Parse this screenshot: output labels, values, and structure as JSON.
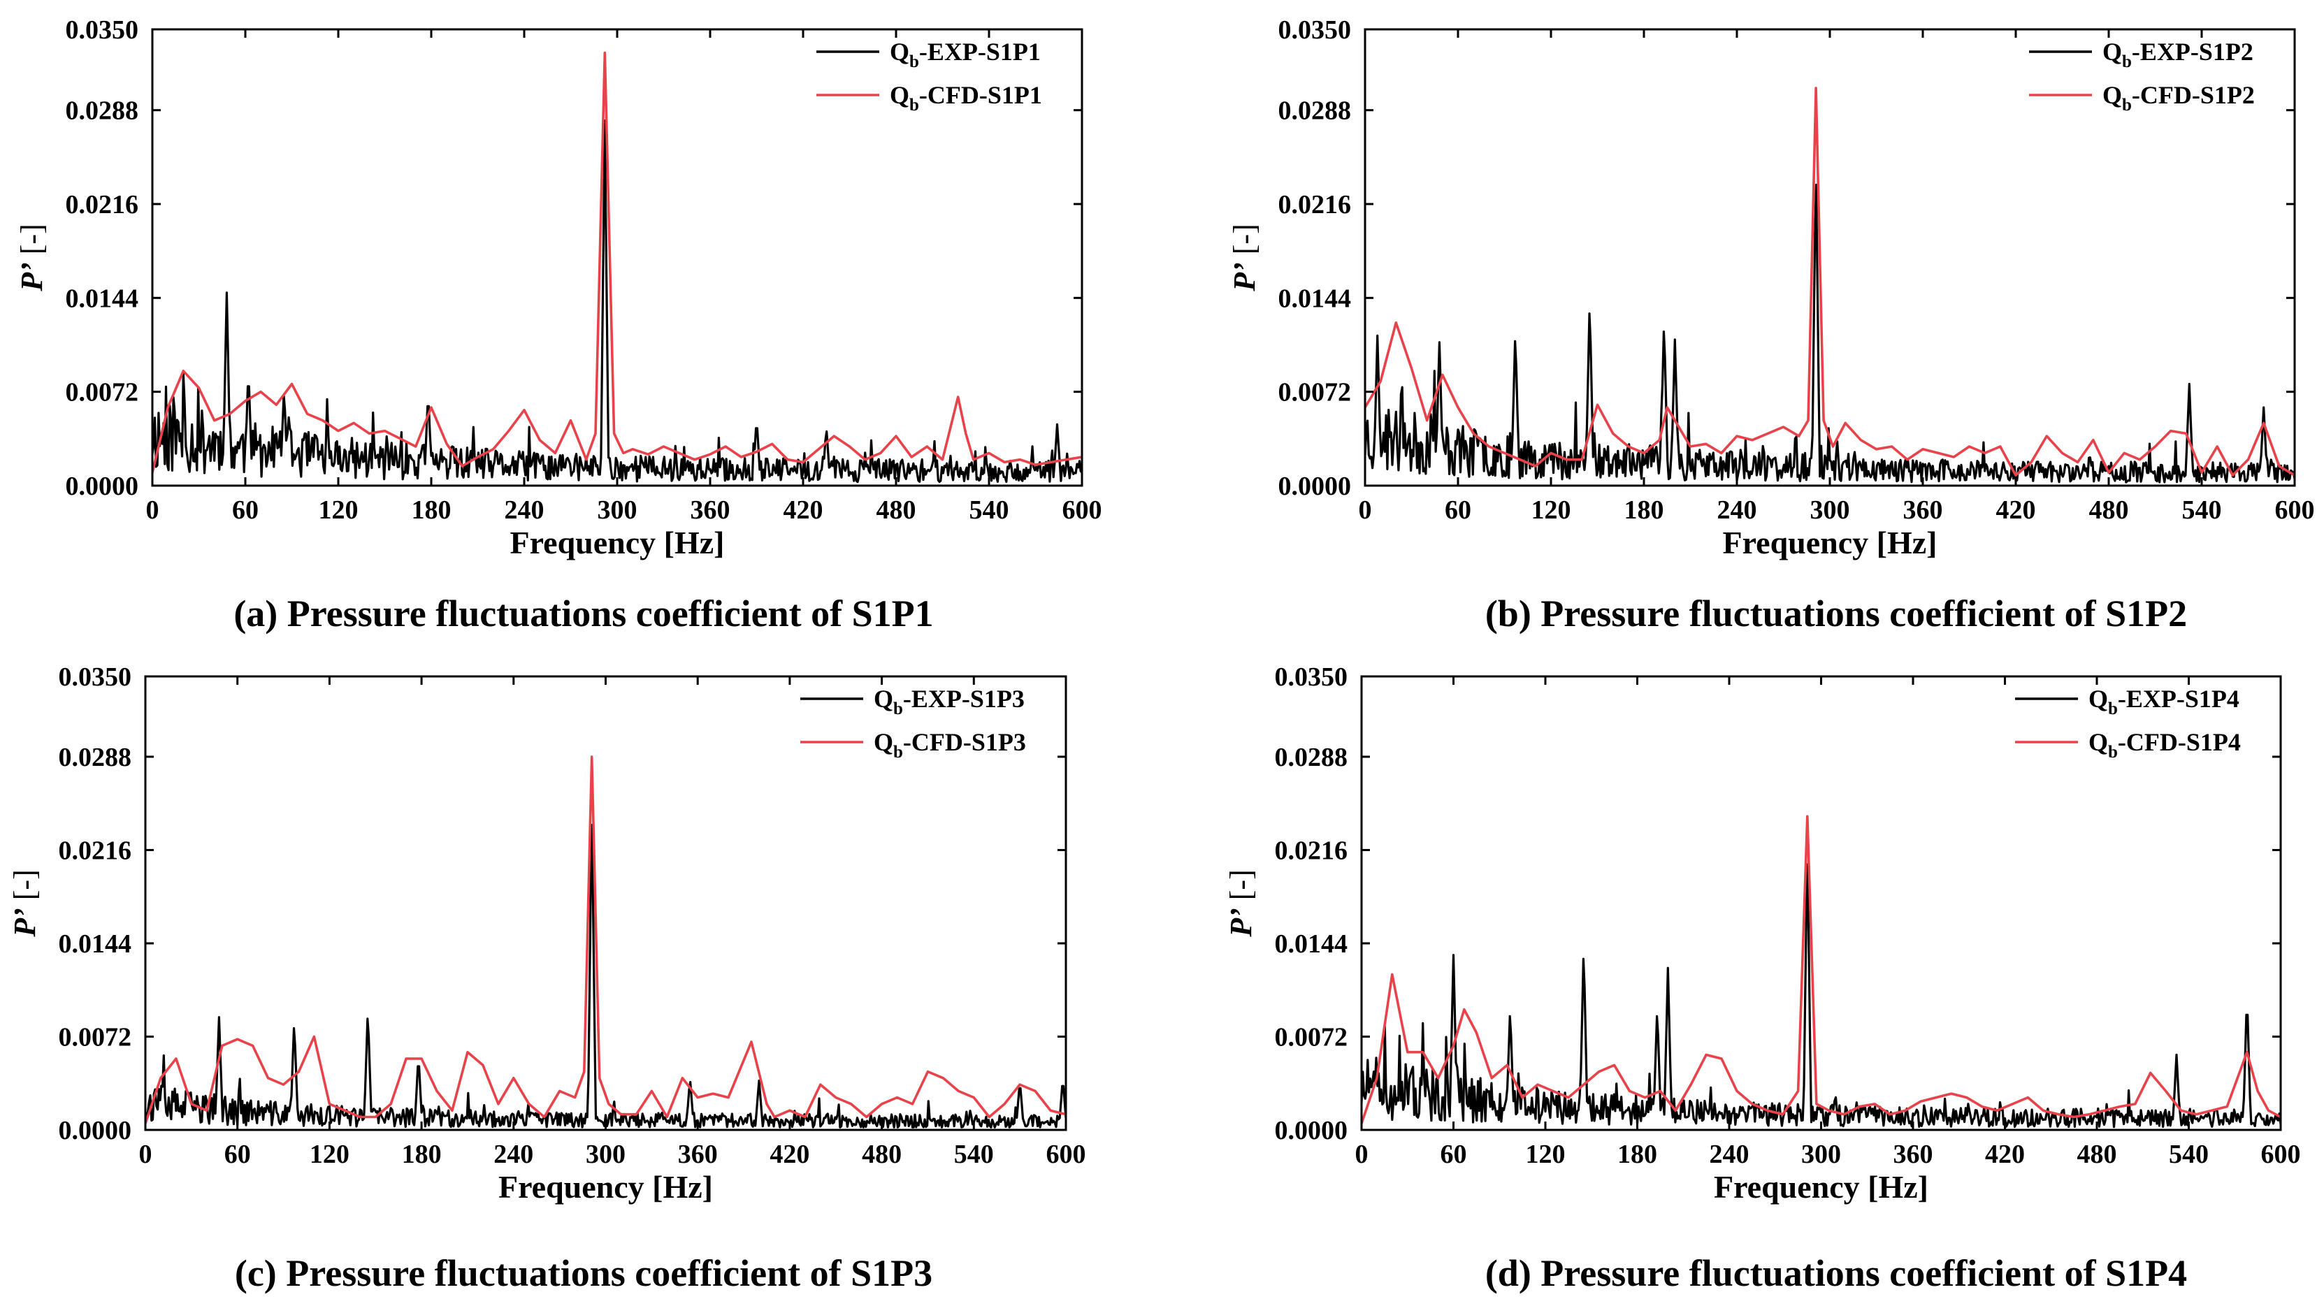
{
  "figure": {
    "panel_count": 4
  },
  "colors": {
    "exp": "#000000",
    "cfd": "#e8434b",
    "axis": "#000000",
    "background": "#ffffff"
  },
  "chart_data": [
    {
      "type": "line",
      "id": "a",
      "caption": "(a) Pressure fluctuations coefficient of S1P1",
      "xlabel": "Frequency [Hz]",
      "ylabel_main": "P’",
      "ylabel_unit": " [-]",
      "xlim": [
        0,
        600
      ],
      "ylim": [
        0,
        0.035
      ],
      "xticks": [
        0,
        60,
        120,
        180,
        240,
        300,
        360,
        420,
        480,
        540,
        600
      ],
      "yticks": [
        "0.0000",
        "0.0072",
        "0.0144",
        "0.0216",
        "0.0288",
        "0.0350"
      ],
      "yticks_values": [
        0,
        0.0072,
        0.0144,
        0.0216,
        0.0288,
        0.035
      ],
      "legend_position": "top-right",
      "series": [
        {
          "name": "Qb-EXP-S1P1",
          "legend_main": "Q",
          "legend_sub": "b",
          "legend_rest": "-EXP-S1P1",
          "color": "#000000",
          "noise": true,
          "seed": 11,
          "baseline": [
            [
              0,
              0.0048
            ],
            [
              60,
              0.0034
            ],
            [
              120,
              0.0026
            ],
            [
              240,
              0.0018
            ],
            [
              360,
              0.0015
            ],
            [
              600,
              0.0013
            ]
          ],
          "peaks": [
            [
              48,
              0.0148
            ],
            [
              292,
              0.028
            ],
            [
              62,
              0.009
            ],
            [
              85,
              0.0075
            ],
            [
              178,
              0.0072
            ],
            [
              390,
              0.0052
            ],
            [
              435,
              0.0045
            ],
            [
              584,
              0.0047
            ]
          ]
        },
        {
          "name": "Qb-CFD-S1P1",
          "legend_main": "Q",
          "legend_sub": "b",
          "legend_rest": "-CFD-S1P1",
          "color": "#e8434b",
          "noise": false,
          "x": [
            0,
            10,
            20,
            30,
            40,
            50,
            60,
            70,
            80,
            90,
            100,
            110,
            120,
            130,
            140,
            150,
            160,
            170,
            180,
            190,
            200,
            210,
            220,
            230,
            240,
            250,
            260,
            270,
            280,
            286,
            292,
            298,
            304,
            310,
            320,
            330,
            340,
            350,
            360,
            370,
            380,
            390,
            400,
            410,
            420,
            430,
            440,
            450,
            460,
            470,
            480,
            490,
            500,
            510,
            520,
            525,
            530,
            540,
            550,
            560,
            570,
            580,
            590,
            600
          ],
          "y": [
            0.001,
            0.006,
            0.0088,
            0.0075,
            0.005,
            0.0055,
            0.0065,
            0.0072,
            0.0062,
            0.0078,
            0.0055,
            0.005,
            0.0042,
            0.0048,
            0.004,
            0.0042,
            0.0036,
            0.003,
            0.006,
            0.0032,
            0.0015,
            0.0022,
            0.0028,
            0.0042,
            0.0058,
            0.0035,
            0.0025,
            0.005,
            0.002,
            0.004,
            0.0332,
            0.004,
            0.0025,
            0.0028,
            0.0024,
            0.003,
            0.0025,
            0.002,
            0.0024,
            0.003,
            0.0022,
            0.0026,
            0.0032,
            0.002,
            0.0018,
            0.0028,
            0.0038,
            0.003,
            0.002,
            0.0025,
            0.0038,
            0.0022,
            0.003,
            0.002,
            0.0068,
            0.004,
            0.002,
            0.0025,
            0.0018,
            0.002,
            0.0016,
            0.0018,
            0.002,
            0.0022
          ]
        }
      ]
    },
    {
      "type": "line",
      "id": "b",
      "caption": "(b) Pressure fluctuations coefficient of S1P2",
      "xlabel": "Frequency [Hz]",
      "ylabel_main": "P’",
      "ylabel_unit": " [-]",
      "xlim": [
        0,
        600
      ],
      "ylim": [
        0,
        0.035
      ],
      "xticks": [
        0,
        60,
        120,
        180,
        240,
        300,
        360,
        420,
        480,
        540,
        600
      ],
      "yticks": [
        "0.0000",
        "0.0072",
        "0.0144",
        "0.0216",
        "0.0288",
        "0.0350"
      ],
      "yticks_values": [
        0,
        0.0072,
        0.0144,
        0.0216,
        0.0288,
        0.035
      ],
      "legend_position": "top-right",
      "series": [
        {
          "name": "Qb-EXP-S1P2",
          "legend_main": "Q",
          "legend_sub": "b",
          "legend_rest": "-EXP-S1P2",
          "color": "#000000",
          "noise": true,
          "seed": 23,
          "baseline": [
            [
              0,
              0.0046
            ],
            [
              60,
              0.0032
            ],
            [
              120,
              0.0025
            ],
            [
              240,
              0.0018
            ],
            [
              360,
              0.0014
            ],
            [
              600,
              0.0012
            ]
          ],
          "peaks": [
            [
              8,
              0.0115
            ],
            [
              48,
              0.011
            ],
            [
              97,
              0.012
            ],
            [
              145,
              0.0143
            ],
            [
              193,
              0.0128
            ],
            [
              200,
              0.0112
            ],
            [
              291,
              0.025
            ],
            [
              532,
              0.0078
            ],
            [
              580,
              0.006
            ]
          ]
        },
        {
          "name": "Qb-CFD-S1P2",
          "legend_main": "Q",
          "legend_sub": "b",
          "legend_rest": "-CFD-S1P2",
          "color": "#e8434b",
          "noise": false,
          "x": [
            0,
            10,
            20,
            30,
            40,
            50,
            60,
            70,
            80,
            90,
            100,
            110,
            120,
            130,
            140,
            150,
            160,
            170,
            180,
            190,
            195,
            200,
            210,
            220,
            230,
            240,
            250,
            260,
            270,
            280,
            286,
            291,
            296,
            302,
            310,
            320,
            330,
            340,
            350,
            360,
            370,
            380,
            390,
            400,
            410,
            420,
            430,
            440,
            450,
            460,
            470,
            480,
            490,
            500,
            510,
            520,
            530,
            540,
            550,
            560,
            570,
            580,
            590,
            600
          ],
          "y": [
            0.006,
            0.008,
            0.0125,
            0.009,
            0.005,
            0.0085,
            0.006,
            0.004,
            0.003,
            0.0025,
            0.002,
            0.0015,
            0.0025,
            0.002,
            0.002,
            0.0062,
            0.004,
            0.003,
            0.0025,
            0.0035,
            0.006,
            0.005,
            0.003,
            0.0032,
            0.0025,
            0.0038,
            0.0035,
            0.004,
            0.0045,
            0.0038,
            0.005,
            0.0305,
            0.005,
            0.003,
            0.0048,
            0.0035,
            0.0028,
            0.003,
            0.002,
            0.0028,
            0.0025,
            0.0022,
            0.003,
            0.0025,
            0.003,
            0.0008,
            0.0018,
            0.0038,
            0.0025,
            0.0018,
            0.0035,
            0.001,
            0.0025,
            0.002,
            0.003,
            0.0042,
            0.004,
            0.001,
            0.003,
            0.0008,
            0.002,
            0.0048,
            0.0015,
            0.0008
          ]
        }
      ]
    },
    {
      "type": "line",
      "id": "c",
      "caption": "(c) Pressure fluctuations coefficient of S1P3",
      "xlabel": "Frequency [Hz]",
      "ylabel_main": "P’",
      "ylabel_unit": " [-]",
      "xlim": [
        0,
        600
      ],
      "ylim": [
        0,
        0.035
      ],
      "xticks": [
        0,
        60,
        120,
        180,
        240,
        300,
        360,
        420,
        480,
        540,
        600
      ],
      "yticks": [
        "0.0000",
        "0.0072",
        "0.0144",
        "0.0216",
        "0.0288",
        "0.0350"
      ],
      "yticks_values": [
        0,
        0.0072,
        0.0144,
        0.0216,
        0.0288,
        0.035
      ],
      "legend_position": "top-right",
      "series": [
        {
          "name": "Qb-EXP-S1P3",
          "legend_main": "Q",
          "legend_sub": "b",
          "legend_rest": "-EXP-S1P3",
          "color": "#000000",
          "noise": true,
          "seed": 37,
          "baseline": [
            [
              0,
              0.0025
            ],
            [
              60,
              0.0017
            ],
            [
              120,
              0.0013
            ],
            [
              240,
              0.001
            ],
            [
              360,
              0.0009
            ],
            [
              600,
              0.0008
            ]
          ],
          "peaks": [
            [
              48,
              0.0087
            ],
            [
              97,
              0.0085
            ],
            [
              145,
              0.0093
            ],
            [
              178,
              0.0058
            ],
            [
              291,
              0.0255
            ],
            [
              355,
              0.004
            ],
            [
              400,
              0.0038
            ],
            [
              570,
              0.0038
            ],
            [
              598,
              0.004
            ]
          ]
        },
        {
          "name": "Qb-CFD-S1P3",
          "legend_main": "Q",
          "legend_sub": "b",
          "legend_rest": "-CFD-S1P3",
          "color": "#e8434b",
          "noise": false,
          "x": [
            0,
            10,
            20,
            30,
            40,
            50,
            60,
            70,
            80,
            90,
            100,
            110,
            120,
            130,
            140,
            150,
            160,
            170,
            180,
            190,
            200,
            210,
            220,
            230,
            240,
            250,
            260,
            270,
            280,
            286,
            291,
            296,
            302,
            310,
            320,
            330,
            340,
            350,
            360,
            370,
            380,
            395,
            405,
            410,
            420,
            430,
            440,
            450,
            460,
            470,
            480,
            490,
            500,
            510,
            520,
            530,
            540,
            550,
            560,
            570,
            580,
            590,
            600
          ],
          "y": [
            0.0005,
            0.004,
            0.0055,
            0.002,
            0.0015,
            0.0065,
            0.007,
            0.0065,
            0.004,
            0.0035,
            0.0045,
            0.0072,
            0.002,
            0.0015,
            0.001,
            0.001,
            0.002,
            0.0055,
            0.0055,
            0.003,
            0.0015,
            0.006,
            0.005,
            0.002,
            0.004,
            0.002,
            0.001,
            0.003,
            0.0025,
            0.0045,
            0.0288,
            0.004,
            0.002,
            0.0012,
            0.0012,
            0.003,
            0.001,
            0.004,
            0.0025,
            0.0028,
            0.0025,
            0.0068,
            0.002,
            0.001,
            0.0015,
            0.001,
            0.0035,
            0.0025,
            0.002,
            0.001,
            0.002,
            0.0025,
            0.002,
            0.0045,
            0.004,
            0.003,
            0.0025,
            0.001,
            0.002,
            0.0035,
            0.003,
            0.0015,
            0.0012
          ]
        }
      ]
    },
    {
      "type": "line",
      "id": "d",
      "caption": "(d) Pressure fluctuations coefficient of S1P4",
      "xlabel": "Frequency [Hz]",
      "ylabel_main": "P’",
      "ylabel_unit": " [-]",
      "xlim": [
        0,
        600
      ],
      "ylim": [
        0,
        0.035
      ],
      "xticks": [
        0,
        60,
        120,
        180,
        240,
        300,
        360,
        420,
        480,
        540,
        600
      ],
      "yticks": [
        "0.0000",
        "0.0072",
        "0.0144",
        "0.0216",
        "0.0288",
        "0.0350"
      ],
      "yticks_values": [
        0,
        0.0072,
        0.0144,
        0.0216,
        0.0288,
        0.035
      ],
      "legend_position": "top-right",
      "series": [
        {
          "name": "Qb-EXP-S1P4",
          "legend_main": "Q",
          "legend_sub": "b",
          "legend_rest": "-EXP-S1P4",
          "color": "#000000",
          "noise": true,
          "seed": 51,
          "baseline": [
            [
              0,
              0.004
            ],
            [
              60,
              0.003
            ],
            [
              120,
              0.0022
            ],
            [
              240,
              0.0015
            ],
            [
              360,
              0.0012
            ],
            [
              600,
              0.0011
            ]
          ],
          "peaks": [
            [
              60,
              0.0135
            ],
            [
              97,
              0.0095
            ],
            [
              145,
              0.0143
            ],
            [
              193,
              0.0095
            ],
            [
              200,
              0.0125
            ],
            [
              291,
              0.0222
            ],
            [
              532,
              0.0058
            ],
            [
              578,
              0.0105
            ]
          ]
        },
        {
          "name": "Qb-CFD-S1P4",
          "legend_main": "Q",
          "legend_sub": "b",
          "legend_rest": "-CFD-S1P4",
          "color": "#e8434b",
          "noise": false,
          "x": [
            0,
            10,
            20,
            30,
            40,
            50,
            60,
            67,
            75,
            85,
            95,
            105,
            115,
            125,
            135,
            145,
            155,
            165,
            175,
            185,
            195,
            205,
            215,
            225,
            235,
            245,
            255,
            265,
            275,
            285,
            291,
            297,
            305,
            315,
            325,
            335,
            345,
            355,
            365,
            375,
            385,
            395,
            405,
            415,
            425,
            435,
            445,
            455,
            465,
            475,
            485,
            495,
            505,
            515,
            525,
            535,
            545,
            555,
            565,
            578,
            585,
            592,
            600
          ],
          "y": [
            0.0005,
            0.004,
            0.012,
            0.006,
            0.006,
            0.004,
            0.0065,
            0.0093,
            0.0075,
            0.004,
            0.005,
            0.0025,
            0.0035,
            0.003,
            0.0025,
            0.0035,
            0.0045,
            0.005,
            0.003,
            0.0025,
            0.003,
            0.0015,
            0.0035,
            0.0058,
            0.0055,
            0.003,
            0.002,
            0.0015,
            0.0012,
            0.003,
            0.0242,
            0.002,
            0.0015,
            0.0012,
            0.0018,
            0.002,
            0.0012,
            0.0015,
            0.0022,
            0.0025,
            0.0028,
            0.0025,
            0.0018,
            0.0015,
            0.002,
            0.0025,
            0.0015,
            0.0012,
            0.001,
            0.0012,
            0.0015,
            0.0018,
            0.002,
            0.0044,
            0.003,
            0.0015,
            0.0012,
            0.0015,
            0.0018,
            0.006,
            0.003,
            0.0015,
            0.001
          ]
        }
      ]
    }
  ]
}
